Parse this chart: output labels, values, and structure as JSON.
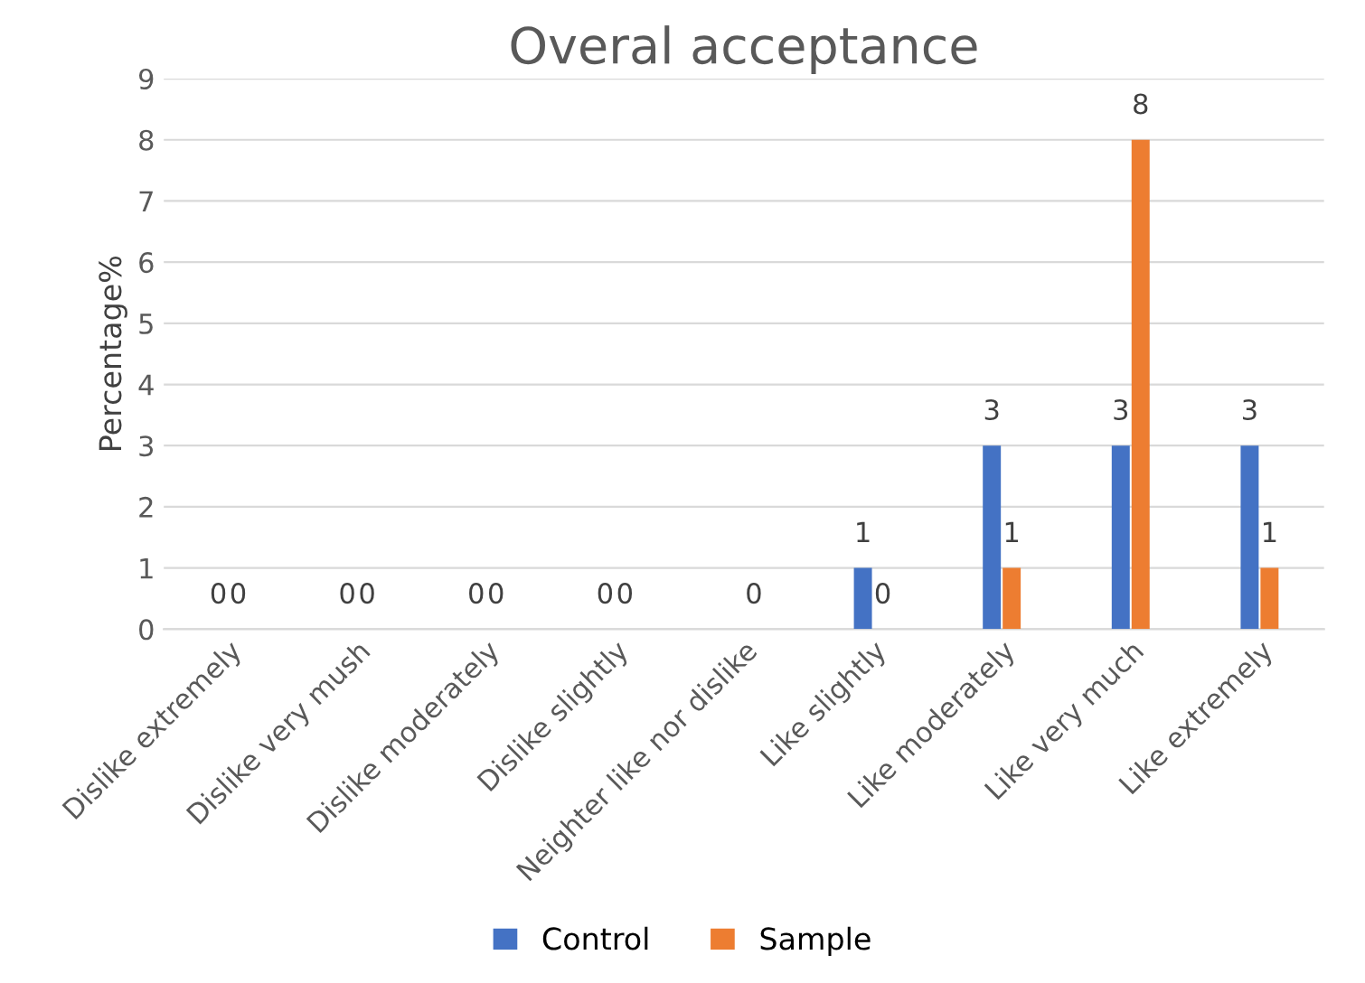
{
  "chart_data": {
    "type": "bar",
    "title": "Overal acceptance",
    "ylabel": "Percentage%",
    "categories": [
      "Dislike extremely",
      "Dislike very mush",
      "Dislike moderately",
      "Dislike slightly",
      "Neighter like nor dislike",
      "Like slightly",
      "Like moderately",
      "Like very much",
      "Like extremely"
    ],
    "series": [
      {
        "name": "Control",
        "color": "#4472c4",
        "values": [
          0,
          0,
          0,
          0,
          0,
          1,
          3,
          3,
          3
        ],
        "value_labels": [
          "0",
          "0",
          "0",
          "0",
          null,
          "1",
          "3",
          "3",
          "3"
        ]
      },
      {
        "name": "Sample",
        "color": "#ed7d31",
        "values": [
          0,
          0,
          0,
          0,
          0,
          0,
          1,
          8,
          1
        ],
        "value_labels": [
          "0",
          "0",
          "0",
          "0",
          "0",
          "0",
          "1",
          "8",
          "1"
        ]
      }
    ],
    "ylim": [
      0,
      9
    ],
    "yticks": [
      0,
      1,
      2,
      3,
      4,
      5,
      6,
      7,
      8,
      9
    ],
    "grid": "y",
    "legend": "bottom"
  }
}
